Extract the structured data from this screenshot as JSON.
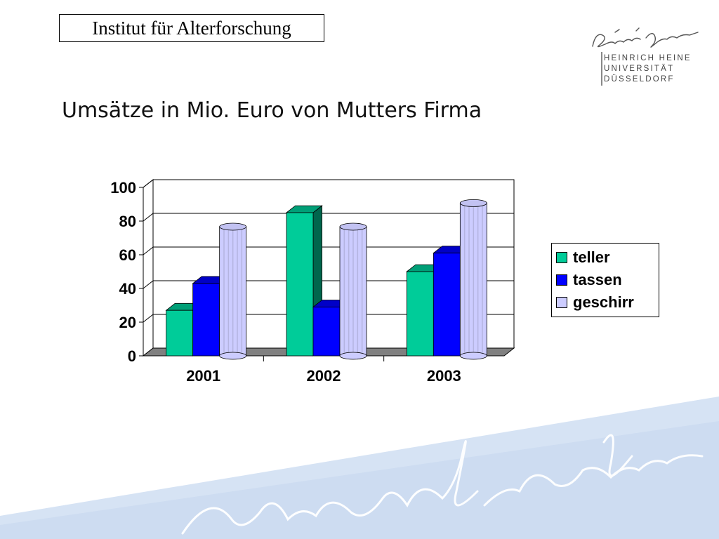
{
  "header": {
    "institute_label": "Institut für Alterforschung"
  },
  "logo": {
    "lines": [
      "HEINRICH HEINE",
      "UNIVERSITÄT",
      "DÜSSELDORF"
    ]
  },
  "slide": {
    "title": "Umsätze in Mio. Euro von Mutters Firma"
  },
  "chart_data": {
    "type": "bar",
    "style": "3d-clustered",
    "categories": [
      "2001",
      "2002",
      "2003"
    ],
    "series": [
      {
        "name": "teller",
        "values": [
          27,
          85,
          50
        ],
        "color": "#00CC99",
        "shape": "box"
      },
      {
        "name": "tassen",
        "values": [
          43,
          29,
          61
        ],
        "color": "#0000FF",
        "shape": "box"
      },
      {
        "name": "geschirr",
        "values": [
          75,
          75,
          89
        ],
        "color": "#CCCCFF",
        "shape": "cylinder"
      }
    ],
    "ylim": [
      0,
      100
    ],
    "yticks": [
      "0",
      "20",
      "40",
      "60",
      "80",
      "100"
    ],
    "grid": true,
    "legend": "right"
  }
}
